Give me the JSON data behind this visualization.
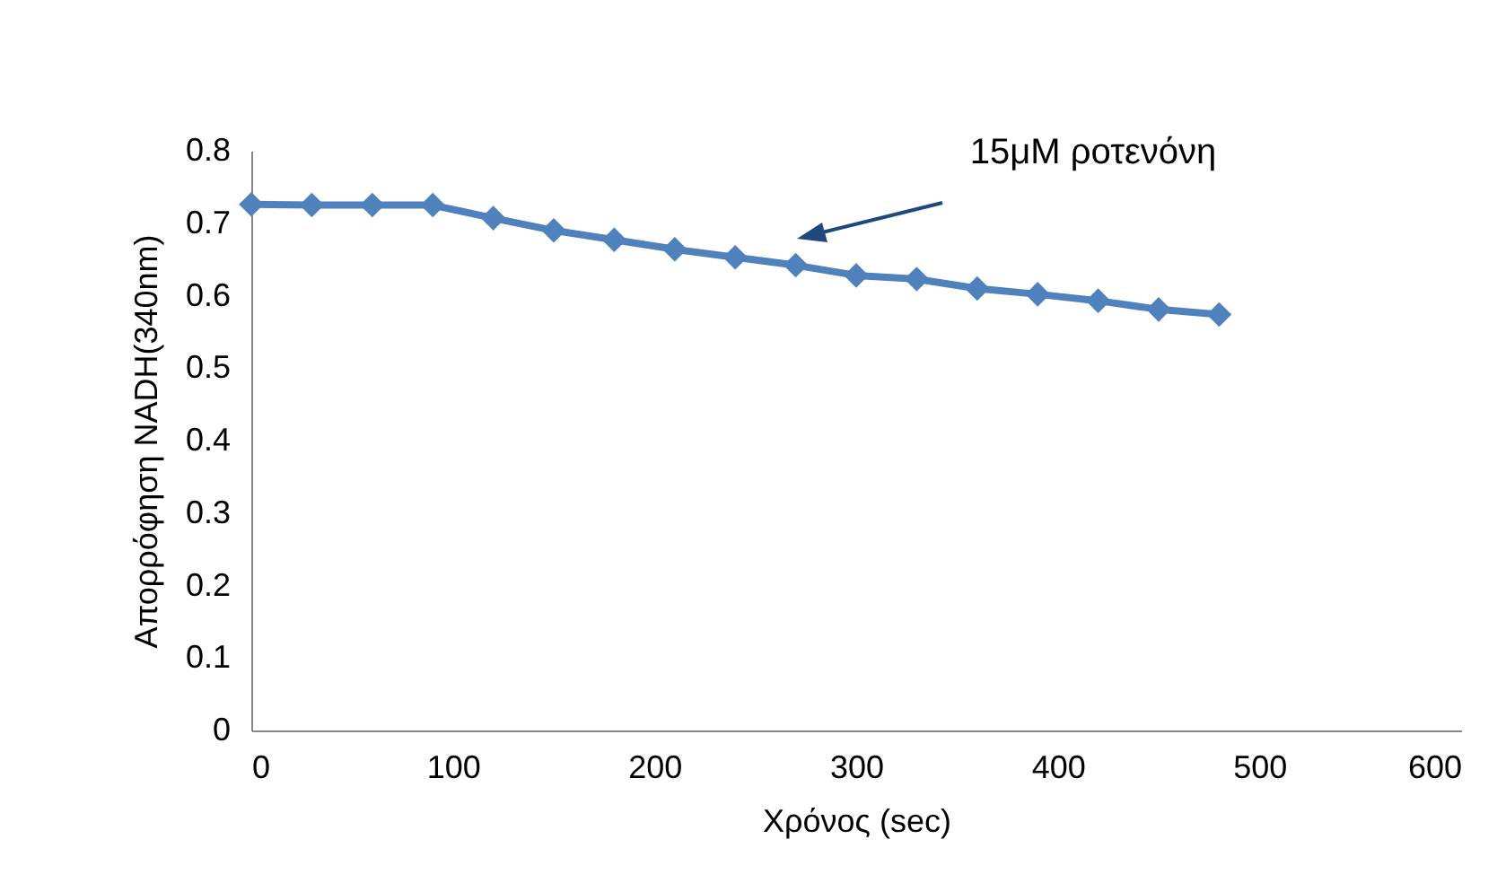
{
  "chart_data": {
    "type": "line",
    "xlabel": "Χρόνος (sec)",
    "ylabel": "Απορρόφηση NADH(340nm)",
    "x": [
      0,
      30,
      60,
      90,
      120,
      150,
      180,
      210,
      240,
      270,
      300,
      330,
      360,
      390,
      420,
      450,
      480
    ],
    "series": [
      {
        "color": "#4f81bd",
        "values": [
          0.726,
          0.725,
          0.725,
          0.725,
          0.707,
          0.69,
          0.677,
          0.664,
          0.653,
          0.642,
          0.628,
          0.623,
          0.61,
          0.602,
          0.593,
          0.581,
          0.574
        ]
      }
    ],
    "xlim": [
      0,
      600
    ],
    "xticks": [
      0,
      100,
      200,
      300,
      400,
      500,
      600
    ],
    "ylim": [
      0,
      0.8
    ],
    "yticks": [
      0,
      0.1,
      0.2,
      0.3,
      0.4,
      0.5,
      0.6,
      0.7,
      0.8
    ],
    "annotations": [
      "15μM ροτενόνη"
    ],
    "marker": "diamond",
    "grid": false
  }
}
